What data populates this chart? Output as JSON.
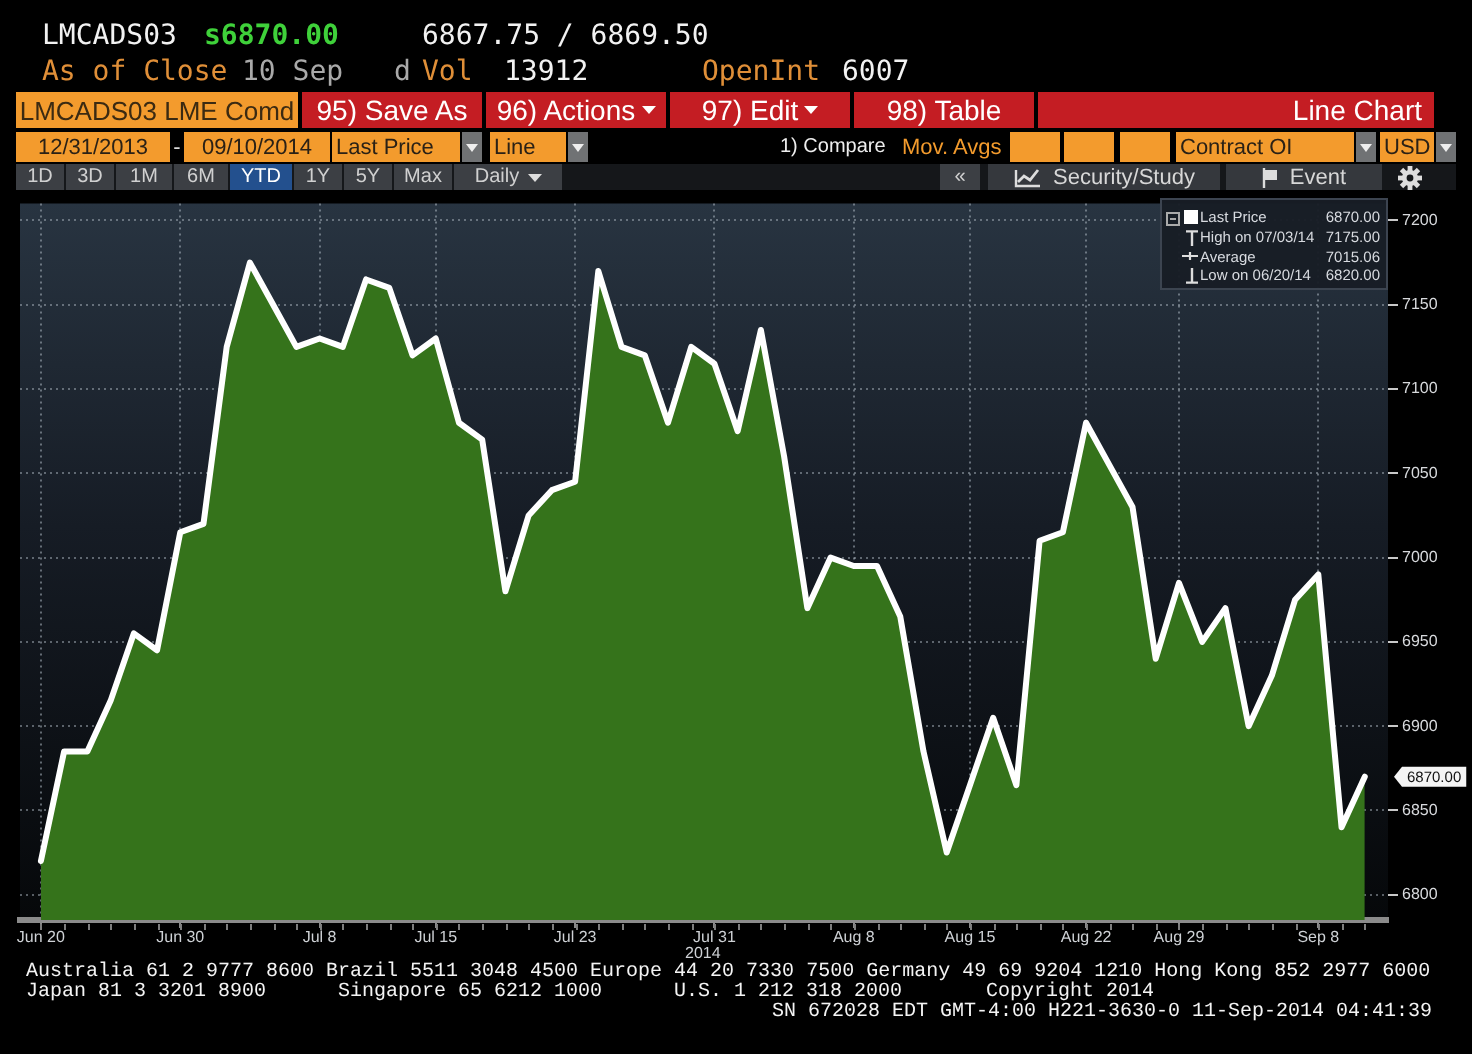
{
  "chart_data": {
    "type": "area",
    "title": "LMCADS03",
    "categories": [
      "Jun 20",
      null,
      null,
      null,
      null,
      null,
      "Jun 30",
      null,
      null,
      null,
      null,
      null,
      "Jul 8",
      null,
      null,
      null,
      null,
      "Jul 15",
      null,
      null,
      null,
      null,
      null,
      "Jul 23",
      null,
      null,
      null,
      null,
      null,
      "Jul 31",
      null,
      null,
      null,
      null,
      null,
      "Aug 8",
      null,
      null,
      null,
      null,
      "Aug 15",
      null,
      null,
      null,
      null,
      "Aug 22",
      null,
      null,
      null,
      "Aug 29",
      null,
      null,
      null,
      null,
      null,
      "Sep 8",
      null,
      null
    ],
    "series": [
      {
        "name": "Last Price",
        "color": "#ffffff",
        "values": [
          6820,
          6885,
          6885,
          6915,
          6955,
          6945,
          7015,
          7020,
          7125,
          7175,
          7150,
          7125,
          7130,
          7125,
          7165,
          7160,
          7120,
          7130,
          7080,
          7070,
          6980,
          7025,
          7040,
          7045,
          7170,
          7125,
          7120,
          7080,
          7125,
          7115,
          7075,
          7135,
          7060,
          6970,
          7000,
          6995,
          6995,
          6965,
          6885,
          6825,
          6865,
          6905,
          6865,
          7010,
          7015,
          7080,
          7055,
          7030,
          6940,
          6985,
          6950,
          6970,
          6900,
          6930,
          6975,
          6990,
          6840,
          6870
        ]
      }
    ],
    "ylim": [
      6785,
      7210
    ],
    "yticks": [
      6800,
      6850,
      6900,
      6950,
      7000,
      7050,
      7100,
      7150,
      7200
    ],
    "grid": true,
    "legend": "top right",
    "annotations": [
      "s6870.00",
      "6867.75 / 6869.50",
      "As of Close",
      "10 Sep",
      "d",
      "Vol",
      "13912",
      "OpenInt",
      "6007",
      "LMCADS03 LME Comd",
      "95) Save As",
      "96) Actions",
      "97) Edit",
      "98) Table",
      "Line Chart",
      "12/31/2013",
      "-",
      "09/10/2014",
      "Last Price",
      "Line",
      "1) Compare",
      "Mov. Avgs",
      "Contract OI",
      "USD",
      "1D",
      "3D",
      "1M",
      "6M",
      "YTD",
      "1Y",
      "5Y",
      "Max",
      "Daily",
      "«",
      "Security/Study",
      "Event",
      "6870.00",
      "High on 07/03/14",
      "7175.00",
      "Average",
      "7015.06",
      "Low on 06/20/14",
      "6820.00",
      "Australia 61 2 9777 8600 Brazil 5511 3048 4500 Europe 44 20 7330 7500 Germany 49 69 9204 1210 Hong Kong 852 2977 6000",
      "Japan 81 3 3201 8900",
      "Singapore 65 6212 1000",
      "U.S. 1 212 318 2000",
      "Copyright 2014",
      "SN 672028 EDT GMT-4:00 H221-3630-0 11-Sep-2014 04:41:39",
      "6870.00",
      "2014"
    ]
  }
}
